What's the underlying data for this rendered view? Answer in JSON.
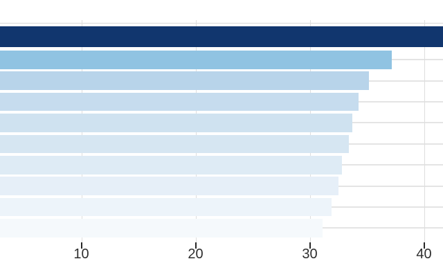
{
  "chart_data": {
    "type": "bar",
    "orientation": "horizontal",
    "title": "",
    "subtitle": "",
    "legend": false,
    "grid": true,
    "category_labels_visible": false,
    "note": "left side of chart is cropped out of frame; category labels and bar origins are off-screen; top navy bar is clipped at the right edge of the image",
    "categories": [
      "",
      "",
      "",
      "",
      "",
      "",
      "",
      "",
      "",
      ""
    ],
    "values": [
      41.8,
      37.2,
      35.2,
      34.3,
      33.7,
      33.4,
      32.8,
      32.5,
      31.9,
      31.1
    ],
    "top_bar_clipped": true,
    "xticks": [
      10,
      20,
      30,
      40
    ],
    "xlim_visible": [
      2.9,
      41.8
    ],
    "bar_colors": [
      "#11366e",
      "#90c3e2",
      "#b8d4ea",
      "#c6dcee",
      "#cfe2f0",
      "#d6e6f2",
      "#deebf5",
      "#e6eff8",
      "#edf4fa",
      "#f5f9fc"
    ]
  },
  "axis": {
    "tick_labels": [
      "10",
      "20",
      "30",
      "40"
    ]
  },
  "colors": {
    "background": "#ffffff",
    "vertical_gridline": "#dedede",
    "category_gridline": "#e4e4e4",
    "top_rule": "#d9d9d9",
    "tick_mark": "#262626",
    "tick_label": "#2e2e2e",
    "bar_navy": "#11366e",
    "bar_light": "#90c3e2"
  }
}
